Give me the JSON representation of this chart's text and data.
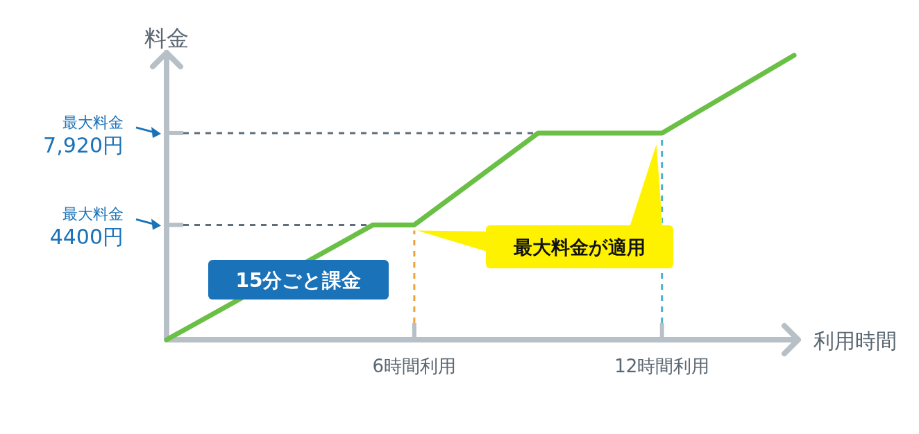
{
  "chart_data": {
    "type": "line",
    "xlabel": "利用時間",
    "ylabel": "料金",
    "x": [
      0,
      5,
      6,
      9,
      12,
      15.2
    ],
    "series": [
      {
        "color": "#6abf45",
        "values": [
          0,
          4400,
          4400,
          7920,
          7920,
          10900
        ]
      }
    ],
    "xlim": [
      0,
      15.3
    ],
    "ylim": [
      0,
      11000
    ],
    "xticks": [
      {
        "value": 6,
        "label": "6時間利用"
      },
      {
        "value": 12,
        "label": "12時間利用"
      }
    ],
    "yticks": [
      {
        "value": 4400,
        "label": "4400円"
      },
      {
        "value": 7920,
        "label": "7,920円"
      }
    ],
    "ref_lines": [
      {
        "axis": "y",
        "value": 4400,
        "color": "#5f6e7a",
        "line_style": "dashed"
      },
      {
        "axis": "y",
        "value": 7920,
        "color": "#5f6e7a",
        "line_style": "dashed"
      },
      {
        "axis": "x",
        "value": 6,
        "color": "#f0a23a",
        "line_style": "dashed"
      },
      {
        "axis": "x",
        "value": 12,
        "color": "#4cb0cc",
        "line_style": "dashed"
      }
    ],
    "annotations": [
      "15分ごと課金",
      "最大料金が適用",
      "最大料金",
      "最大料金"
    ],
    "grid": false,
    "marker": "none",
    "line_style": "solid"
  }
}
